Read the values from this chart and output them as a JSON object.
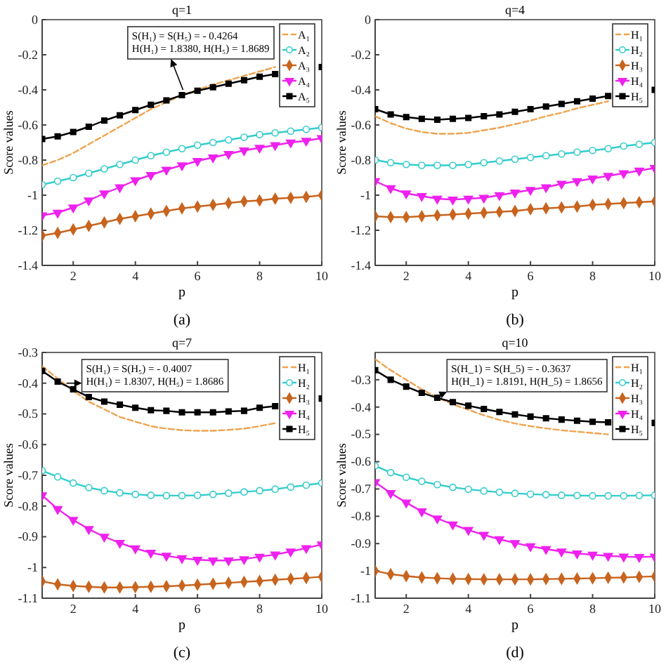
{
  "chart_data": [
    {
      "type": "line",
      "title": "q=1",
      "xlabel": "p",
      "ylabel": "Score values",
      "xlim": [
        1,
        10
      ],
      "xticks": [
        2,
        4,
        6,
        8,
        10
      ],
      "ylim": [
        -1.4,
        0
      ],
      "yticks": [
        -1.4,
        -1.2,
        -1,
        -0.8,
        -0.6,
        -0.4,
        -0.2,
        0
      ],
      "legend": "top right",
      "x": [
        1,
        1.5,
        2,
        2.5,
        3,
        3.5,
        4,
        4.5,
        5,
        5.5,
        6,
        6.5,
        7,
        7.5,
        8,
        8.5,
        9,
        9.5,
        10
      ],
      "series": [
        {
          "name": "A₁",
          "color": "#eea34e",
          "marker": "none",
          "line_style": "dashed",
          "values": [
            -0.83,
            -0.8,
            -0.76,
            -0.71,
            -0.66,
            -0.61,
            -0.56,
            -0.51,
            -0.47,
            -0.43,
            -0.4,
            -0.37,
            -0.345,
            -0.32,
            -0.295,
            -0.27,
            null,
            null,
            null
          ]
        },
        {
          "name": "A₂",
          "color": "#33cccc",
          "marker": "circle",
          "line_style": "solid",
          "values": [
            -0.94,
            -0.92,
            -0.9,
            -0.875,
            -0.85,
            -0.825,
            -0.8,
            -0.775,
            -0.755,
            -0.735,
            -0.715,
            -0.7,
            -0.685,
            -0.67,
            -0.655,
            -0.645,
            -0.635,
            -0.625,
            -0.615
          ]
        },
        {
          "name": "A₃",
          "color": "#c8641e",
          "marker": "diamond",
          "line_style": "solid",
          "values": [
            -1.23,
            -1.215,
            -1.195,
            -1.175,
            -1.155,
            -1.135,
            -1.12,
            -1.105,
            -1.09,
            -1.075,
            -1.065,
            -1.055,
            -1.045,
            -1.035,
            -1.03,
            -1.02,
            -1.015,
            -1.01,
            -1
          ]
        },
        {
          "name": "A₄",
          "color": "#ee22ee",
          "marker": "triangle",
          "line_style": "solid",
          "values": [
            -1.115,
            -1.1,
            -1.07,
            -1.03,
            -0.99,
            -0.955,
            -0.915,
            -0.885,
            -0.855,
            -0.83,
            -0.805,
            -0.785,
            -0.765,
            -0.745,
            -0.73,
            -0.715,
            -0.7,
            -0.69,
            -0.675
          ]
        },
        {
          "name": "A₅",
          "color": "#000000",
          "marker": "square",
          "line_style": "solid",
          "values": [
            -0.68,
            -0.665,
            -0.64,
            -0.61,
            -0.575,
            -0.545,
            -0.515,
            -0.485,
            -0.46,
            -0.43,
            -0.405,
            -0.385,
            -0.365,
            -0.345,
            -0.325,
            -0.31,
            null,
            null,
            -0.27
          ]
        }
      ],
      "annotations": [
        {
          "text": "S(H₁) = S(H₅) = - 0.4264\nH(H₁) = 1.8380, H(H₅) = 1.8689",
          "x": 5.6,
          "y": -0.43
        },
        "(a)"
      ]
    },
    {
      "type": "line",
      "title": "q=4",
      "xlabel": "p",
      "ylabel": "Score values",
      "xlim": [
        1,
        10
      ],
      "xticks": [
        2,
        4,
        6,
        8,
        10
      ],
      "ylim": [
        -1.4,
        0
      ],
      "yticks": [
        -1.4,
        -1.2,
        -1,
        -0.8,
        -0.6,
        -0.4,
        -0.2,
        0
      ],
      "legend": "top right",
      "x": [
        1,
        1.5,
        2,
        2.5,
        3,
        3.5,
        4,
        4.5,
        5,
        5.5,
        6,
        6.5,
        7,
        7.5,
        8,
        8.5,
        9,
        9.5,
        10
      ],
      "series": [
        {
          "name": "H₁",
          "color": "#eea34e",
          "marker": "none",
          "line_style": "dashed",
          "values": [
            -0.55,
            -0.59,
            -0.62,
            -0.64,
            -0.65,
            -0.65,
            -0.645,
            -0.63,
            -0.615,
            -0.595,
            -0.575,
            -0.55,
            -0.53,
            -0.505,
            -0.485,
            -0.465,
            null,
            null,
            null
          ]
        },
        {
          "name": "H₂",
          "color": "#33cccc",
          "marker": "circle",
          "line_style": "solid",
          "values": [
            -0.8,
            -0.815,
            -0.825,
            -0.83,
            -0.83,
            -0.83,
            -0.825,
            -0.815,
            -0.805,
            -0.795,
            -0.785,
            -0.775,
            -0.765,
            -0.755,
            -0.745,
            -0.735,
            -0.72,
            -0.71,
            -0.7
          ]
        },
        {
          "name": "H₃",
          "color": "#c8641e",
          "marker": "diamond",
          "line_style": "solid",
          "values": [
            -1.12,
            -1.125,
            -1.125,
            -1.12,
            -1.115,
            -1.11,
            -1.105,
            -1.1,
            -1.095,
            -1.09,
            -1.08,
            -1.075,
            -1.07,
            -1.065,
            -1.055,
            -1.05,
            -1.045,
            -1.04,
            -1.035
          ]
        },
        {
          "name": "H₄",
          "color": "#ee22ee",
          "marker": "triangle",
          "line_style": "solid",
          "values": [
            -0.92,
            -0.96,
            -0.99,
            -1.005,
            -1.02,
            -1.025,
            -1.02,
            -1.015,
            -1,
            -0.985,
            -0.97,
            -0.955,
            -0.935,
            -0.92,
            -0.905,
            -0.89,
            -0.875,
            -0.86,
            -0.845
          ]
        },
        {
          "name": "H₅",
          "color": "#000000",
          "marker": "square",
          "line_style": "solid",
          "values": [
            -0.51,
            -0.54,
            -0.555,
            -0.565,
            -0.57,
            -0.565,
            -0.56,
            -0.55,
            -0.54,
            -0.525,
            -0.51,
            -0.495,
            -0.48,
            -0.465,
            -0.45,
            -0.435,
            null,
            null,
            -0.4
          ]
        }
      ],
      "annotations": [
        "(b)"
      ]
    },
    {
      "type": "line",
      "title": "q=7",
      "xlabel": "p",
      "ylabel": "Score values",
      "xlim": [
        1,
        10
      ],
      "xticks": [
        2,
        4,
        6,
        8,
        10
      ],
      "ylim": [
        -1.1,
        -0.3
      ],
      "yticks": [
        -1.1,
        -1,
        -0.9,
        -0.8,
        -0.7,
        -0.6,
        -0.5,
        -0.4,
        -0.3
      ],
      "legend": "top right",
      "x": [
        1,
        1.5,
        2,
        2.5,
        3,
        3.5,
        4,
        4.5,
        5,
        5.5,
        6,
        6.5,
        7,
        7.5,
        8,
        8.5,
        9,
        9.5,
        10
      ],
      "series": [
        {
          "name": "H₁",
          "color": "#eea34e",
          "marker": "none",
          "line_style": "dashed",
          "values": [
            -0.345,
            -0.385,
            -0.425,
            -0.46,
            -0.485,
            -0.51,
            -0.525,
            -0.54,
            -0.548,
            -0.553,
            -0.555,
            -0.555,
            -0.552,
            -0.548,
            -0.54,
            -0.53,
            null,
            null,
            null
          ]
        },
        {
          "name": "H₂",
          "color": "#33cccc",
          "marker": "circle",
          "line_style": "solid",
          "values": [
            -0.685,
            -0.705,
            -0.725,
            -0.74,
            -0.75,
            -0.757,
            -0.762,
            -0.765,
            -0.766,
            -0.766,
            -0.765,
            -0.762,
            -0.758,
            -0.754,
            -0.75,
            -0.745,
            -0.738,
            -0.732,
            -0.725
          ]
        },
        {
          "name": "H₃",
          "color": "#c8641e",
          "marker": "diamond",
          "line_style": "solid",
          "values": [
            -1.045,
            -1.055,
            -1.06,
            -1.063,
            -1.065,
            -1.065,
            -1.064,
            -1.063,
            -1.061,
            -1.059,
            -1.056,
            -1.053,
            -1.05,
            -1.047,
            -1.044,
            -1.04,
            -1.037,
            -1.034,
            -1.03
          ]
        },
        {
          "name": "H₄",
          "color": "#ee22ee",
          "marker": "triangle",
          "line_style": "solid",
          "values": [
            -0.765,
            -0.81,
            -0.845,
            -0.875,
            -0.9,
            -0.92,
            -0.938,
            -0.952,
            -0.962,
            -0.97,
            -0.975,
            -0.977,
            -0.977,
            -0.973,
            -0.965,
            -0.958,
            -0.948,
            -0.937,
            -0.925
          ]
        },
        {
          "name": "H₅",
          "color": "#000000",
          "marker": "square",
          "line_style": "solid",
          "values": [
            -0.36,
            -0.395,
            -0.42,
            -0.445,
            -0.46,
            -0.47,
            -0.48,
            -0.488,
            -0.49,
            -0.495,
            -0.495,
            -0.495,
            -0.492,
            -0.49,
            -0.48,
            -0.475,
            null,
            null,
            -0.45
          ]
        }
      ],
      "annotations": [
        {
          "text": "S(H₁) = S(H₅) = - 0.4007\nH(H₁) = 1.8307, H(H₅) = 1.8686",
          "x": 1.6,
          "y": -0.4
        },
        "(c)"
      ]
    },
    {
      "type": "line",
      "title": "q=10",
      "xlabel": "p",
      "ylabel": "Score values",
      "xlim": [
        1,
        10
      ],
      "xticks": [
        2,
        4,
        6,
        8,
        10
      ],
      "ylim": [
        -1.1,
        -0.2
      ],
      "yticks": [
        -1.1,
        -1,
        -0.9,
        -0.8,
        -0.7,
        -0.6,
        -0.5,
        -0.4,
        -0.3
      ],
      "legend": "top right",
      "x": [
        1,
        1.5,
        2,
        2.5,
        3,
        3.5,
        4,
        4.5,
        5,
        5.5,
        6,
        6.5,
        7,
        7.5,
        8,
        8.5,
        9,
        9.5,
        10
      ],
      "series": [
        {
          "name": "H₁",
          "color": "#eea34e",
          "marker": "none",
          "line_style": "dashed",
          "values": [
            -0.225,
            -0.265,
            -0.3,
            -0.335,
            -0.365,
            -0.39,
            -0.41,
            -0.43,
            -0.447,
            -0.46,
            -0.47,
            -0.478,
            -0.485,
            -0.49,
            -0.495,
            -0.5,
            null,
            null,
            null
          ]
        },
        {
          "name": "H₂",
          "color": "#33cccc",
          "marker": "circle",
          "line_style": "solid",
          "values": [
            -0.615,
            -0.64,
            -0.657,
            -0.672,
            -0.684,
            -0.694,
            -0.701,
            -0.707,
            -0.712,
            -0.716,
            -0.719,
            -0.721,
            -0.723,
            -0.724,
            -0.725,
            -0.725,
            -0.725,
            -0.724,
            -0.723
          ]
        },
        {
          "name": "H₃",
          "color": "#c8641e",
          "marker": "diamond",
          "line_style": "solid",
          "values": [
            -1,
            -1.012,
            -1.019,
            -1.024,
            -1.027,
            -1.029,
            -1.03,
            -1.031,
            -1.031,
            -1.031,
            -1.031,
            -1.03,
            -1.029,
            -1.028,
            -1.027,
            -1.025,
            -1.024,
            -1.022,
            -1.02
          ]
        },
        {
          "name": "H₄",
          "color": "#ee22ee",
          "marker": "triangle",
          "line_style": "solid",
          "values": [
            -0.675,
            -0.715,
            -0.75,
            -0.782,
            -0.808,
            -0.83,
            -0.85,
            -0.868,
            -0.884,
            -0.898,
            -0.91,
            -0.92,
            -0.929,
            -0.936,
            -0.941,
            -0.945,
            -0.948,
            -0.949,
            -0.948
          ]
        },
        {
          "name": "H₅",
          "color": "#000000",
          "marker": "square",
          "line_style": "solid",
          "values": [
            -0.265,
            -0.3,
            -0.325,
            -0.348,
            -0.366,
            -0.382,
            -0.395,
            -0.407,
            -0.418,
            -0.427,
            -0.435,
            -0.441,
            -0.446,
            -0.45,
            -0.454,
            -0.456,
            null,
            null,
            -0.458
          ]
        }
      ],
      "annotations": [
        {
          "text": "S(H_1) = S(H_5) = - 0.3637\nH(H_1) = 1.8191, H(H_5) = 1.8656",
          "x": 3,
          "y": -0.36
        },
        "(d)"
      ]
    }
  ]
}
